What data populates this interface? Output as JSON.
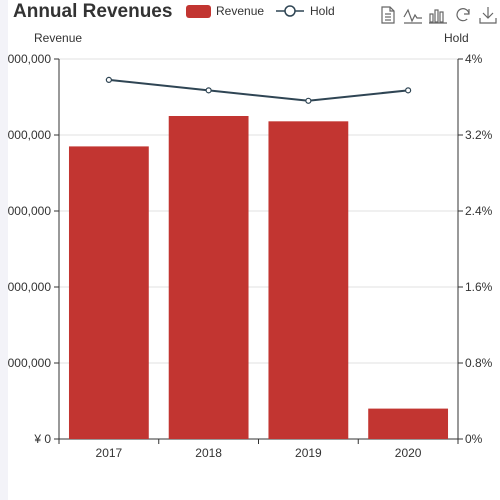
{
  "chart_data": {
    "type": "bar",
    "title": "Annual Revenues",
    "categories": [
      "2017",
      "2018",
      "2019",
      "2020"
    ],
    "series": [
      {
        "name": "Revenue",
        "type": "bar",
        "axis": "left",
        "color": "#c23531",
        "values": [
          3850000,
          4250000,
          4180000,
          400000
        ]
      },
      {
        "name": "Hold",
        "type": "line",
        "axis": "right",
        "color": "#2f4554",
        "values": [
          3.78,
          3.67,
          3.56,
          3.67
        ]
      }
    ],
    "ylabel": "Revenue",
    "y2label": "Hold",
    "ylim": [
      0,
      5000000
    ],
    "y2lim": [
      0,
      4
    ],
    "ytick_labels": [
      "¥ 0",
      "000,000",
      "000,000",
      "000,000",
      "000,000",
      "000,000"
    ],
    "y2tick_labels": [
      "0%",
      "0.8%",
      "1.6%",
      "2.4%",
      "3.2%",
      "4%"
    ],
    "grid": true,
    "legend_position": "top"
  },
  "toolbox": {
    "icons": [
      "data-view-icon",
      "line-chart-icon",
      "bar-chart-icon",
      "restore-icon",
      "download-icon"
    ]
  }
}
